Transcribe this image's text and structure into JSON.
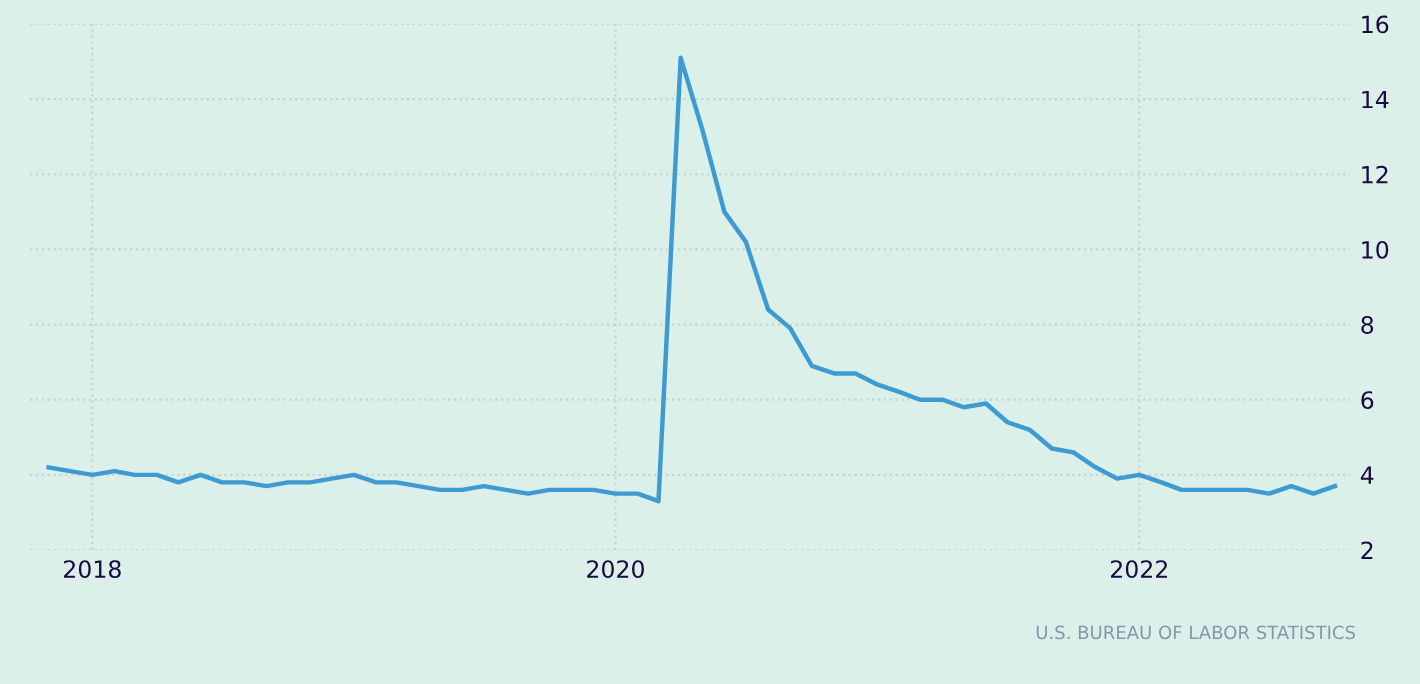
{
  "chart_data": {
    "type": "line",
    "x": [
      "2017-11",
      "2017-12",
      "2018-01",
      "2018-02",
      "2018-03",
      "2018-04",
      "2018-05",
      "2018-06",
      "2018-07",
      "2018-08",
      "2018-09",
      "2018-10",
      "2018-11",
      "2018-12",
      "2019-01",
      "2019-02",
      "2019-03",
      "2019-04",
      "2019-05",
      "2019-06",
      "2019-07",
      "2019-08",
      "2019-09",
      "2019-10",
      "2019-11",
      "2019-12",
      "2020-01",
      "2020-02",
      "2020-03",
      "2020-04",
      "2020-05",
      "2020-06",
      "2020-07",
      "2020-08",
      "2020-09",
      "2020-10",
      "2020-11",
      "2020-12",
      "2021-01",
      "2021-02",
      "2021-03",
      "2021-04",
      "2021-05",
      "2021-06",
      "2021-07",
      "2021-08",
      "2021-09",
      "2021-10",
      "2021-11",
      "2021-12",
      "2022-01",
      "2022-02",
      "2022-03",
      "2022-04",
      "2022-05",
      "2022-06",
      "2022-07",
      "2022-08",
      "2022-09",
      "2022-10"
    ],
    "series": [
      {
        "color": "#3d9bd1",
        "values": [
          4.2,
          4.1,
          4.0,
          4.1,
          4.0,
          4.0,
          3.8,
          4.0,
          3.8,
          3.8,
          3.7,
          3.8,
          3.8,
          3.9,
          4.0,
          3.8,
          3.8,
          3.7,
          3.6,
          3.6,
          3.7,
          3.6,
          3.5,
          3.6,
          3.6,
          3.6,
          3.5,
          3.5,
          3.3,
          15.1,
          13.2,
          11.0,
          10.2,
          8.4,
          7.9,
          6.9,
          6.7,
          6.7,
          6.4,
          6.2,
          6.0,
          6.0,
          5.8,
          5.9,
          5.4,
          5.2,
          4.7,
          4.6,
          4.2,
          3.9,
          4.0,
          3.8,
          3.6,
          3.6,
          3.6,
          3.6,
          3.5,
          3.7,
          3.5,
          3.7
        ]
      }
    ],
    "xlim": [
      "2017-10-06",
      "2022-10-22"
    ],
    "xticks": [
      {
        "value": "2018-01",
        "label": "2018"
      },
      {
        "value": "2020-01",
        "label": "2020"
      },
      {
        "value": "2022-01",
        "label": "2022"
      }
    ],
    "ylim": [
      2,
      16
    ],
    "yticks": [
      2,
      4,
      6,
      8,
      10,
      12,
      14,
      16
    ],
    "grid": true,
    "legend": false,
    "marker": "none",
    "line_style": "solid",
    "annotations": [
      "U.S. BUREAU OF LABOR STATISTICS"
    ]
  }
}
